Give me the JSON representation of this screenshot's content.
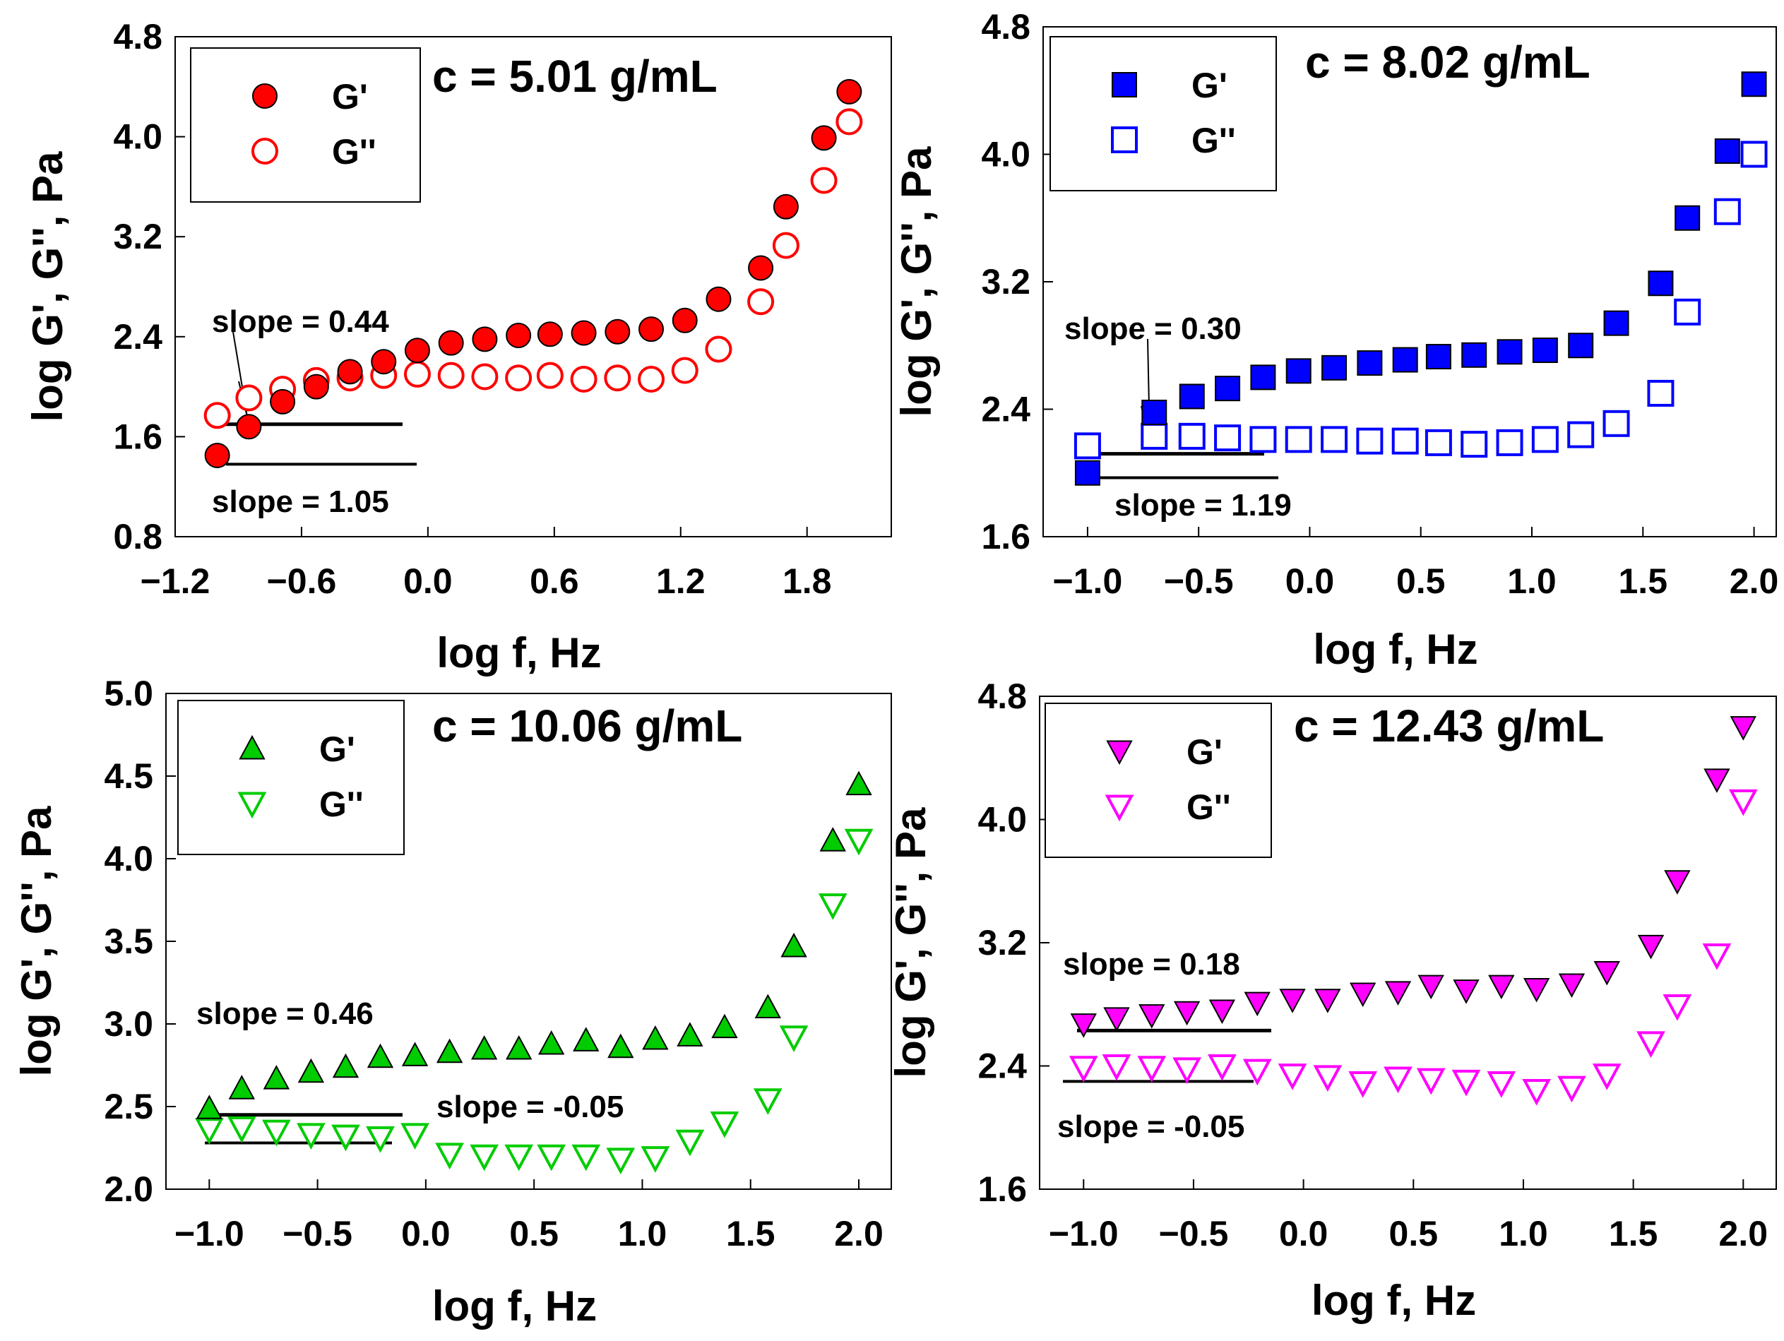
{
  "chart_data": [
    {
      "type": "scatter",
      "title": "c = 5.01 g/mL",
      "xlabel": "log f, Hz",
      "ylabel": "log G', G'', Pa",
      "xlim": [
        -1.2,
        2.2
      ],
      "ylim": [
        0.8,
        4.8
      ],
      "xticks": [
        "−1.2",
        "−0.6",
        "0.0",
        "0.6",
        "1.2",
        "1.8"
      ],
      "xtick_values": [
        -1.2,
        -0.6,
        0.0,
        0.6,
        1.2,
        1.8
      ],
      "yticks": [
        "0.8",
        "1.6",
        "2.4",
        "3.2",
        "4.0",
        "4.8"
      ],
      "ytick_values": [
        0.8,
        1.6,
        2.4,
        3.2,
        4.0,
        4.8
      ],
      "legend_position": "top-left",
      "color": "#ff0000",
      "x": [
        -1.0,
        -0.85,
        -0.69,
        -0.53,
        -0.37,
        -0.21,
        -0.05,
        0.11,
        0.27,
        0.43,
        0.58,
        0.74,
        0.9,
        1.06,
        1.22,
        1.38,
        1.58,
        1.7,
        1.88,
        2.0
      ],
      "series": [
        {
          "name": "G'",
          "marker": "filled-circle",
          "values": [
            1.45,
            1.68,
            1.88,
            2.0,
            2.12,
            2.2,
            2.29,
            2.35,
            2.38,
            2.41,
            2.42,
            2.43,
            2.44,
            2.46,
            2.53,
            2.7,
            2.95,
            3.44,
            3.99,
            4.36
          ]
        },
        {
          "name": "G''",
          "marker": "open-circle",
          "values": [
            1.77,
            1.91,
            1.98,
            2.05,
            2.07,
            2.09,
            2.1,
            2.09,
            2.08,
            2.07,
            2.09,
            2.06,
            2.07,
            2.06,
            2.13,
            2.3,
            2.68,
            3.13,
            3.65,
            4.12
          ]
        }
      ],
      "annotations": [
        {
          "text": "slope = 0.44",
          "line_y": 1.7
        },
        {
          "text": "slope = 1.05",
          "line_y": 1.38
        }
      ]
    },
    {
      "type": "scatter",
      "title": "c = 8.02 g/mL",
      "xlabel": "log f, Hz",
      "ylabel": "log G', G'', Pa",
      "xlim": [
        -1.2,
        2.1
      ],
      "ylim": [
        1.6,
        4.8
      ],
      "xticks": [
        "−1.0",
        "−0.5",
        "0.0",
        "0.5",
        "1.0",
        "1.5",
        "2.0"
      ],
      "xtick_values": [
        -1.0,
        -0.5,
        0.0,
        0.5,
        1.0,
        1.5,
        2.0
      ],
      "yticks": [
        "1.6",
        "2.4",
        "3.2",
        "4.0",
        "4.8"
      ],
      "ytick_values": [
        1.6,
        2.4,
        3.2,
        4.0,
        4.8
      ],
      "legend_position": "top-left",
      "color": "#0000ff",
      "x": [
        -1.0,
        -0.7,
        -0.53,
        -0.37,
        -0.21,
        -0.05,
        0.11,
        0.27,
        0.43,
        0.58,
        0.74,
        0.9,
        1.06,
        1.22,
        1.38,
        1.58,
        1.7,
        1.88,
        2.0
      ],
      "series": [
        {
          "name": "G'",
          "marker": "filled-square",
          "values": [
            2.0,
            2.38,
            2.48,
            2.53,
            2.6,
            2.64,
            2.66,
            2.69,
            2.71,
            2.73,
            2.74,
            2.76,
            2.77,
            2.8,
            2.94,
            3.19,
            3.6,
            4.02,
            4.44
          ]
        },
        {
          "name": "G''",
          "marker": "open-square",
          "values": [
            2.17,
            2.23,
            2.23,
            2.22,
            2.21,
            2.21,
            2.21,
            2.2,
            2.2,
            2.19,
            2.18,
            2.19,
            2.21,
            2.24,
            2.31,
            2.5,
            3.01,
            3.64,
            4.0
          ]
        }
      ],
      "annotations": [
        {
          "text": "slope = 0.30",
          "line_y": 2.12
        },
        {
          "text": "slope = 1.19",
          "line_y": 1.97
        }
      ]
    },
    {
      "type": "scatter",
      "title": "c = 10.06 g/mL",
      "xlabel": "log f, Hz",
      "ylabel": "log G', G'', Pa",
      "xlim": [
        -1.2,
        2.15
      ],
      "ylim": [
        2.0,
        5.0
      ],
      "xticks": [
        "−1.0",
        "−0.5",
        "0.0",
        "0.5",
        "1.0",
        "1.5",
        "2.0"
      ],
      "xtick_values": [
        -1.0,
        -0.5,
        0.0,
        0.5,
        1.0,
        1.5,
        2.0
      ],
      "yticks": [
        "2.0",
        "2.5",
        "3.0",
        "3.5",
        "4.0",
        "4.5",
        "5.0"
      ],
      "ytick_values": [
        2.0,
        2.5,
        3.0,
        3.5,
        4.0,
        4.5,
        5.0
      ],
      "legend_position": "top-left",
      "color": "#00cc00",
      "x": [
        -1.0,
        -0.85,
        -0.69,
        -0.53,
        -0.37,
        -0.21,
        -0.05,
        0.11,
        0.27,
        0.43,
        0.58,
        0.74,
        0.9,
        1.06,
        1.22,
        1.38,
        1.58,
        1.7,
        1.88,
        2.0
      ],
      "series": [
        {
          "name": "G'",
          "marker": "filled-triangle-up",
          "values": [
            2.49,
            2.61,
            2.67,
            2.71,
            2.74,
            2.8,
            2.81,
            2.83,
            2.85,
            2.85,
            2.88,
            2.9,
            2.86,
            2.91,
            2.93,
            2.98,
            3.1,
            3.47,
            4.11,
            4.45
          ]
        },
        {
          "name": "G''",
          "marker": "open-triangle-down",
          "values": [
            2.36,
            2.37,
            2.35,
            2.33,
            2.32,
            2.31,
            2.33,
            2.21,
            2.2,
            2.2,
            2.2,
            2.2,
            2.18,
            2.19,
            2.29,
            2.4,
            2.54,
            2.92,
            3.72,
            4.11
          ]
        }
      ],
      "annotations": [
        {
          "text": "slope = 0.46",
          "line_y": 2.45
        },
        {
          "text": "slope = -0.05",
          "line_y": 2.28
        }
      ]
    },
    {
      "type": "scatter",
      "title": "c = 12.43 g/mL",
      "xlabel": "log f, Hz",
      "ylabel": "log G', G'', Pa",
      "xlim": [
        -1.2,
        2.15
      ],
      "ylim": [
        1.6,
        4.8
      ],
      "xticks": [
        "−1.0",
        "−0.5",
        "0.0",
        "0.5",
        "1.0",
        "1.5",
        "2.0"
      ],
      "xtick_values": [
        -1.0,
        -0.5,
        0.0,
        0.5,
        1.0,
        1.5,
        2.0
      ],
      "yticks": [
        "1.6",
        "2.4",
        "3.2",
        "4.0",
        "4.8"
      ],
      "ytick_values": [
        1.6,
        2.4,
        3.2,
        4.0,
        4.8
      ],
      "legend_position": "top-left",
      "color": "#ff00ff",
      "x": [
        -1.0,
        -0.85,
        -0.69,
        -0.53,
        -0.37,
        -0.21,
        -0.05,
        0.11,
        0.27,
        0.43,
        0.58,
        0.74,
        0.9,
        1.06,
        1.22,
        1.38,
        1.58,
        1.7,
        1.88,
        2.0
      ],
      "series": [
        {
          "name": "G'",
          "marker": "filled-triangle-down",
          "values": [
            2.67,
            2.71,
            2.73,
            2.75,
            2.76,
            2.81,
            2.83,
            2.83,
            2.87,
            2.88,
            2.92,
            2.89,
            2.92,
            2.9,
            2.93,
            3.01,
            3.18,
            3.6,
            4.26,
            4.6
          ]
        },
        {
          "name": "G''",
          "marker": "open-triangle-down",
          "values": [
            2.39,
            2.4,
            2.39,
            2.38,
            2.4,
            2.37,
            2.34,
            2.33,
            2.29,
            2.32,
            2.31,
            2.3,
            2.29,
            2.24,
            2.26,
            2.34,
            2.55,
            2.79,
            3.12,
            4.12
          ]
        }
      ],
      "annotations": [
        {
          "text": "slope = 0.18",
          "line_y": 2.63
        },
        {
          "text": "slope = -0.05",
          "line_y": 2.3
        }
      ]
    }
  ]
}
